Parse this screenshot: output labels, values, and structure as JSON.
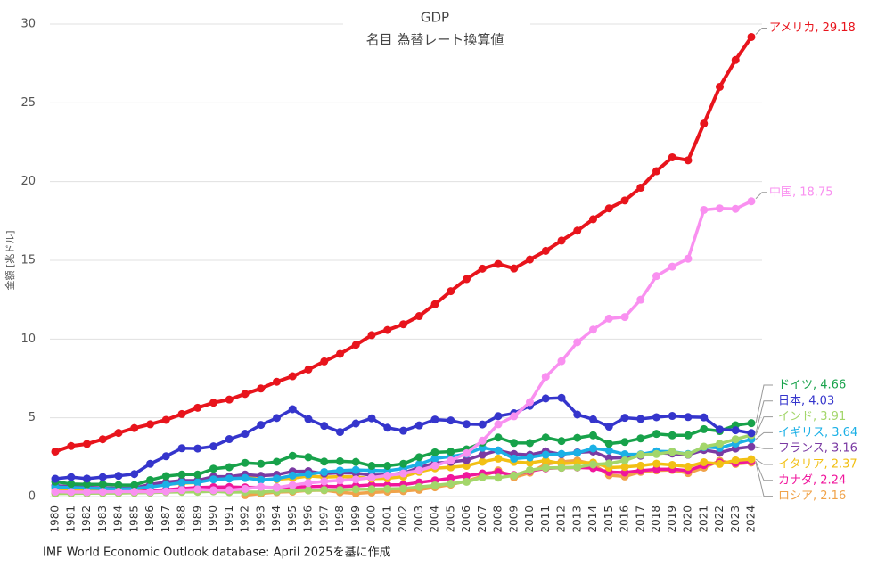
{
  "chart_data": {
    "type": "line",
    "title": "GDP",
    "subtitle": "名目 為替レート換算値",
    "y_label": "金額 [兆ドル]",
    "source": "IMF World Economic Outlook database: April 2025を基に作成",
    "categories": [
      "1980",
      "1981",
      "1982",
      "1983",
      "1984",
      "1985",
      "1986",
      "1987",
      "1988",
      "1989",
      "1990",
      "1991",
      "1992",
      "1993",
      "1994",
      "1995",
      "1996",
      "1997",
      "1998",
      "1999",
      "2000",
      "2001",
      "2002",
      "2003",
      "2004",
      "2005",
      "2006",
      "2007",
      "2008",
      "2009",
      "2010",
      "2011",
      "2012",
      "2013",
      "2014",
      "2015",
      "2016",
      "2017",
      "2018",
      "2019",
      "2020",
      "2021",
      "2022",
      "2023",
      "2024"
    ],
    "ylim": [
      0,
      30
    ],
    "yticks": [
      0,
      5,
      10,
      15,
      20,
      25,
      30
    ],
    "grid": true,
    "series": [
      {
        "label": "ロシア, 2.16",
        "color": "#f0a34a",
        "values": [
          null,
          null,
          null,
          null,
          null,
          null,
          null,
          null,
          null,
          null,
          null,
          null,
          0.09,
          0.19,
          0.28,
          0.31,
          0.39,
          0.4,
          0.27,
          0.2,
          0.26,
          0.31,
          0.35,
          0.43,
          0.59,
          0.76,
          0.99,
          1.3,
          1.66,
          1.22,
          1.52,
          2.05,
          2.21,
          2.29,
          2.06,
          1.36,
          1.28,
          1.57,
          1.66,
          1.69,
          1.49,
          1.84,
          2.27,
          2.07,
          2.16
        ]
      },
      {
        "label": "カナダ, 2.24",
        "color": "#f0169c",
        "values": [
          0.28,
          0.31,
          0.32,
          0.35,
          0.36,
          0.37,
          0.38,
          0.43,
          0.51,
          0.57,
          0.6,
          0.61,
          0.59,
          0.58,
          0.58,
          0.6,
          0.63,
          0.65,
          0.63,
          0.68,
          0.74,
          0.74,
          0.76,
          0.9,
          1.03,
          1.17,
          1.32,
          1.47,
          1.55,
          1.37,
          1.62,
          1.79,
          1.83,
          1.85,
          1.81,
          1.56,
          1.53,
          1.65,
          1.73,
          1.74,
          1.65,
          2.0,
          2.17,
          2.14,
          2.24
        ]
      },
      {
        "label": "イタリア, 2.37",
        "color": "#f2c014",
        "values": [
          0.48,
          0.43,
          0.43,
          0.44,
          0.44,
          0.45,
          0.63,
          0.78,
          0.85,
          0.89,
          1.18,
          1.24,
          1.32,
          1.06,
          1.1,
          1.17,
          1.31,
          1.24,
          1.27,
          1.25,
          1.14,
          1.16,
          1.27,
          1.57,
          1.8,
          1.86,
          1.95,
          2.21,
          2.41,
          2.2,
          2.14,
          2.29,
          2.09,
          2.14,
          2.16,
          1.84,
          1.88,
          1.96,
          2.09,
          2.01,
          1.9,
          2.18,
          2.07,
          2.3,
          2.37
        ]
      },
      {
        "label": "フランス, 3.16",
        "color": "#7a3aa3",
        "values": [
          0.7,
          0.62,
          0.59,
          0.56,
          0.53,
          0.55,
          0.77,
          0.92,
          1.02,
          1.02,
          1.27,
          1.27,
          1.4,
          1.32,
          1.39,
          1.6,
          1.61,
          1.46,
          1.51,
          1.49,
          1.36,
          1.38,
          1.49,
          1.84,
          2.12,
          2.2,
          2.32,
          2.66,
          2.93,
          2.7,
          2.65,
          2.87,
          2.68,
          2.81,
          2.86,
          2.44,
          2.47,
          2.59,
          2.79,
          2.73,
          2.65,
          2.96,
          2.79,
          3.05,
          3.16
        ]
      },
      {
        "label": "イギリス, 3.64",
        "color": "#1bb0e6",
        "values": [
          0.6,
          0.57,
          0.54,
          0.51,
          0.48,
          0.5,
          0.61,
          0.74,
          0.89,
          0.9,
          1.09,
          1.14,
          1.18,
          1.06,
          1.14,
          1.34,
          1.42,
          1.56,
          1.65,
          1.69,
          1.66,
          1.64,
          1.78,
          2.05,
          2.42,
          2.54,
          2.71,
          3.1,
          2.93,
          2.41,
          2.49,
          2.66,
          2.71,
          2.78,
          3.06,
          2.93,
          2.69,
          2.68,
          2.87,
          2.85,
          2.7,
          3.14,
          3.09,
          3.37,
          3.64
        ]
      },
      {
        "label": "インド, 3.91",
        "color": "#a3d66a",
        "values": [
          0.19,
          0.2,
          0.21,
          0.22,
          0.22,
          0.24,
          0.25,
          0.28,
          0.3,
          0.3,
          0.33,
          0.28,
          0.29,
          0.28,
          0.33,
          0.37,
          0.4,
          0.42,
          0.42,
          0.46,
          0.47,
          0.49,
          0.51,
          0.61,
          0.71,
          0.82,
          0.94,
          1.22,
          1.2,
          1.34,
          1.68,
          1.82,
          1.83,
          1.86,
          2.04,
          2.1,
          2.29,
          2.65,
          2.7,
          2.84,
          2.67,
          3.17,
          3.35,
          3.64,
          3.91
        ]
      },
      {
        "label": "ドイツ, 4.66",
        "color": "#17a24a",
        "values": [
          0.95,
          0.8,
          0.78,
          0.78,
          0.73,
          0.73,
          1.05,
          1.3,
          1.4,
          1.4,
          1.77,
          1.87,
          2.14,
          2.08,
          2.21,
          2.59,
          2.5,
          2.22,
          2.24,
          2.2,
          1.95,
          1.95,
          2.08,
          2.5,
          2.81,
          2.85,
          3.0,
          3.43,
          3.75,
          3.41,
          3.4,
          3.75,
          3.53,
          3.73,
          3.89,
          3.36,
          3.47,
          3.69,
          3.98,
          3.89,
          3.89,
          4.28,
          4.16,
          4.53,
          4.66
        ]
      },
      {
        "label": "日本, 4.03",
        "color": "#3535cc",
        "values": [
          1.13,
          1.24,
          1.14,
          1.24,
          1.32,
          1.43,
          2.08,
          2.56,
          3.07,
          3.05,
          3.19,
          3.65,
          3.99,
          4.55,
          4.99,
          5.55,
          4.92,
          4.49,
          4.1,
          4.64,
          4.97,
          4.37,
          4.18,
          4.52,
          4.89,
          4.83,
          4.6,
          4.58,
          5.11,
          5.29,
          5.76,
          6.23,
          6.27,
          5.21,
          4.9,
          4.44,
          5.0,
          4.93,
          5.04,
          5.12,
          5.05,
          5.03,
          4.26,
          4.21,
          4.03
        ]
      },
      {
        "label": "中国, 18.75",
        "color": "#f990f0",
        "values": [
          0.31,
          0.29,
          0.28,
          0.3,
          0.31,
          0.31,
          0.3,
          0.33,
          0.41,
          0.46,
          0.4,
          0.41,
          0.49,
          0.62,
          0.56,
          0.73,
          0.86,
          0.96,
          1.03,
          1.09,
          1.21,
          1.34,
          1.47,
          1.66,
          1.96,
          2.29,
          2.75,
          3.55,
          4.59,
          5.1,
          6.0,
          7.6,
          8.6,
          9.8,
          10.6,
          11.3,
          11.4,
          12.5,
          14.0,
          14.6,
          15.1,
          18.2,
          18.3,
          18.27,
          18.75
        ]
      },
      {
        "label": "アメリカ, 29.18",
        "color": "#e8141c",
        "values": [
          2.86,
          3.21,
          3.34,
          3.64,
          4.04,
          4.35,
          4.59,
          4.87,
          5.24,
          5.64,
          5.96,
          6.16,
          6.52,
          6.86,
          7.29,
          7.64,
          8.07,
          8.58,
          9.06,
          9.63,
          10.25,
          10.58,
          10.94,
          11.46,
          12.21,
          13.04,
          13.81,
          14.47,
          14.77,
          14.48,
          15.05,
          15.6,
          16.25,
          16.88,
          17.61,
          18.3,
          18.8,
          19.61,
          20.66,
          21.54,
          21.35,
          23.68,
          26.01,
          27.72,
          29.18
        ]
      }
    ]
  }
}
